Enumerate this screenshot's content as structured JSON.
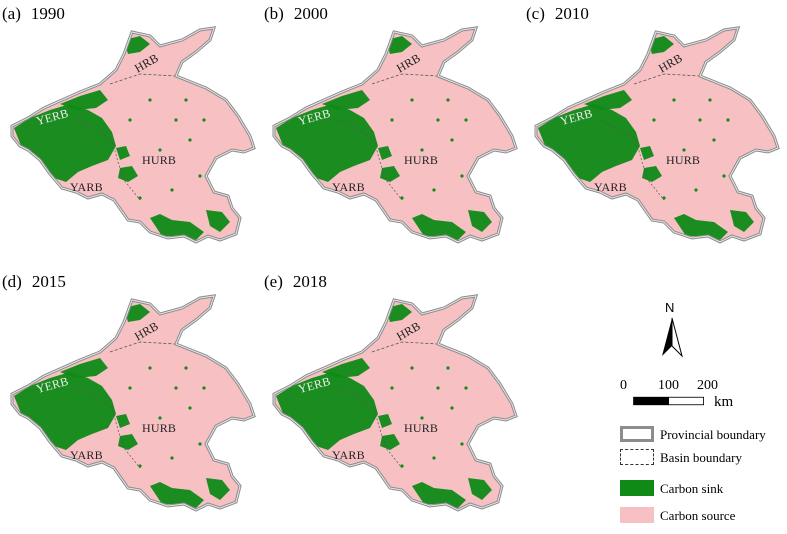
{
  "panels": [
    {
      "tag": "(a)",
      "year": "1990"
    },
    {
      "tag": "(b)",
      "year": "2000"
    },
    {
      "tag": "(c)",
      "year": "2010"
    },
    {
      "tag": "(d)",
      "year": "2015"
    },
    {
      "tag": "(e)",
      "year": "2018"
    }
  ],
  "basins": {
    "hrb": "HRB",
    "yerb": "YERB",
    "hurb": "HURB",
    "yarb": "YARB"
  },
  "north": "N",
  "scale": {
    "ticks": [
      "0",
      "100",
      "200"
    ],
    "unit": "km"
  },
  "legend": {
    "provincial": "Provincial boundary",
    "basin": "Basin boundary",
    "sink": "Carbon sink",
    "source": "Carbon source"
  },
  "colors": {
    "sink": "#0f8a17",
    "source": "#f7c1c4",
    "provincial_border": "#8c8c8c",
    "basin_line": "#555555"
  }
}
